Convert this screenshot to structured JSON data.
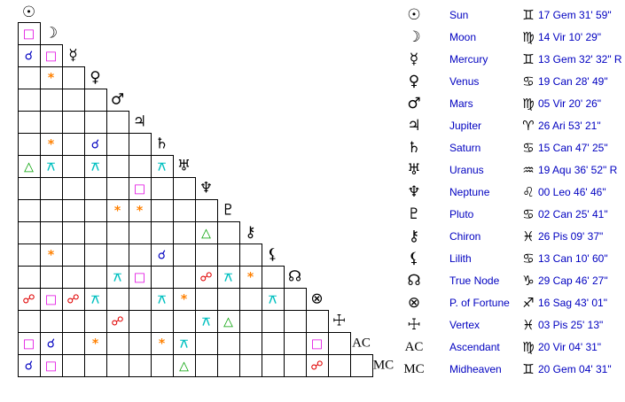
{
  "planets": [
    {
      "symbol": "☉",
      "name": "Sun",
      "sign": "♊",
      "position": "17 Gem 31' 59\""
    },
    {
      "symbol": "☽",
      "name": "Moon",
      "sign": "♍",
      "position": "14 Vir 10' 29\""
    },
    {
      "symbol": "☿",
      "name": "Mercury",
      "sign": "♊",
      "position": "13 Gem 32' 32\" R"
    },
    {
      "symbol": "♀",
      "name": "Venus",
      "sign": "♋",
      "position": "19 Can 28' 49\""
    },
    {
      "symbol": "♂",
      "name": "Mars",
      "sign": "♍",
      "position": "05 Vir 20' 26\""
    },
    {
      "symbol": "♃",
      "name": "Jupiter",
      "sign": "♈",
      "position": "26 Ari 53' 21\""
    },
    {
      "symbol": "♄",
      "name": "Saturn",
      "sign": "♋",
      "position": "15 Can 47' 25\""
    },
    {
      "symbol": "♅",
      "name": "Uranus",
      "sign": "♒",
      "position": "19 Aqu 36' 52\" R"
    },
    {
      "symbol": "♆",
      "name": "Neptune",
      "sign": "♌",
      "position": "00 Leo 46' 46\""
    },
    {
      "symbol": "♇",
      "name": "Pluto",
      "sign": "♋",
      "position": "02 Can 25' 41\""
    },
    {
      "symbol": "⚷",
      "name": "Chiron",
      "sign": "♓",
      "position": "26 Pis 09' 37\""
    },
    {
      "symbol": "⚸",
      "name": "Lilith",
      "sign": "♋",
      "position": "13 Can 10' 60\""
    },
    {
      "symbol": "☊",
      "name": "True Node",
      "sign": "♑",
      "position": "29 Cap 46' 27\""
    },
    {
      "symbol": "⊗",
      "name": "P. of Fortune",
      "sign": "♐",
      "position": "16 Sag 43' 01\""
    },
    {
      "symbol": "☩",
      "name": "Vertex",
      "sign": "♓",
      "position": "03 Pis 25' 13\""
    },
    {
      "symbol": "AC",
      "name": "Ascendant",
      "sign": "♍",
      "position": "20 Vir 04' 31\""
    },
    {
      "symbol": "MC",
      "name": "Midheaven",
      "sign": "♊",
      "position": "20 Gem 04' 31\""
    }
  ],
  "grid": [
    [
      {
        "glyph": "□",
        "color": "#e000e0"
      }
    ],
    [
      {
        "glyph": "☌",
        "color": "#0000c0"
      },
      {
        "glyph": "□",
        "color": "#e000e0"
      }
    ],
    [
      null,
      {
        "glyph": "*",
        "color": "#ff8000"
      },
      null
    ],
    [
      null,
      null,
      null,
      null
    ],
    [
      null,
      null,
      null,
      null,
      null
    ],
    [
      null,
      {
        "glyph": "*",
        "color": "#ff8000"
      },
      null,
      {
        "glyph": "☌",
        "color": "#0000c0"
      },
      null,
      null
    ],
    [
      {
        "glyph": "△",
        "color": "#00a000"
      },
      {
        "glyph": "⚻",
        "color": "#00c0c0"
      },
      null,
      {
        "glyph": "⚻",
        "color": "#00c0c0"
      },
      null,
      null,
      {
        "glyph": "⚻",
        "color": "#00c0c0"
      }
    ],
    [
      null,
      null,
      null,
      null,
      null,
      {
        "glyph": "□",
        "color": "#e000e0"
      },
      null,
      null
    ],
    [
      null,
      null,
      null,
      null,
      {
        "glyph": "*",
        "color": "#ff8000"
      },
      {
        "glyph": "*",
        "color": "#ff8000"
      },
      null,
      null,
      null
    ],
    [
      null,
      null,
      null,
      null,
      null,
      null,
      null,
      null,
      {
        "glyph": "△",
        "color": "#00a000"
      },
      null
    ],
    [
      null,
      {
        "glyph": "*",
        "color": "#ff8000"
      },
      null,
      null,
      null,
      null,
      {
        "glyph": "☌",
        "color": "#0000c0"
      },
      null,
      null,
      null,
      null
    ],
    [
      null,
      null,
      null,
      null,
      {
        "glyph": "⚻",
        "color": "#00c0c0"
      },
      {
        "glyph": "□",
        "color": "#e000e0"
      },
      null,
      null,
      {
        "glyph": "☍",
        "color": "#e00000"
      },
      {
        "glyph": "⚻",
        "color": "#00c0c0"
      },
      {
        "glyph": "*",
        "color": "#ff8000"
      },
      null
    ],
    [
      {
        "glyph": "☍",
        "color": "#e00000"
      },
      {
        "glyph": "□",
        "color": "#e000e0"
      },
      {
        "glyph": "☍",
        "color": "#e00000"
      },
      {
        "glyph": "⚻",
        "color": "#00c0c0"
      },
      null,
      null,
      {
        "glyph": "⚻",
        "color": "#00c0c0"
      },
      {
        "glyph": "*",
        "color": "#ff8000"
      },
      null,
      null,
      null,
      {
        "glyph": "⚻",
        "color": "#00c0c0"
      },
      null
    ],
    [
      null,
      null,
      null,
      null,
      {
        "glyph": "☍",
        "color": "#e00000"
      },
      null,
      null,
      null,
      {
        "glyph": "⚻",
        "color": "#00c0c0"
      },
      {
        "glyph": "△",
        "color": "#00a000"
      },
      null,
      null,
      null,
      null
    ],
    [
      {
        "glyph": "□",
        "color": "#e000e0"
      },
      {
        "glyph": "☌",
        "color": "#0000c0"
      },
      null,
      {
        "glyph": "*",
        "color": "#ff8000"
      },
      null,
      null,
      {
        "glyph": "*",
        "color": "#ff8000"
      },
      {
        "glyph": "⚻",
        "color": "#00c0c0"
      },
      null,
      null,
      null,
      null,
      null,
      {
        "glyph": "□",
        "color": "#e000e0"
      },
      null
    ],
    [
      {
        "glyph": "☌",
        "color": "#0000c0"
      },
      {
        "glyph": "□",
        "color": "#e000e0"
      },
      null,
      null,
      null,
      null,
      null,
      {
        "glyph": "△",
        "color": "#00a000"
      },
      null,
      null,
      null,
      null,
      null,
      {
        "glyph": "☍",
        "color": "#e00000"
      },
      null,
      null
    ]
  ]
}
